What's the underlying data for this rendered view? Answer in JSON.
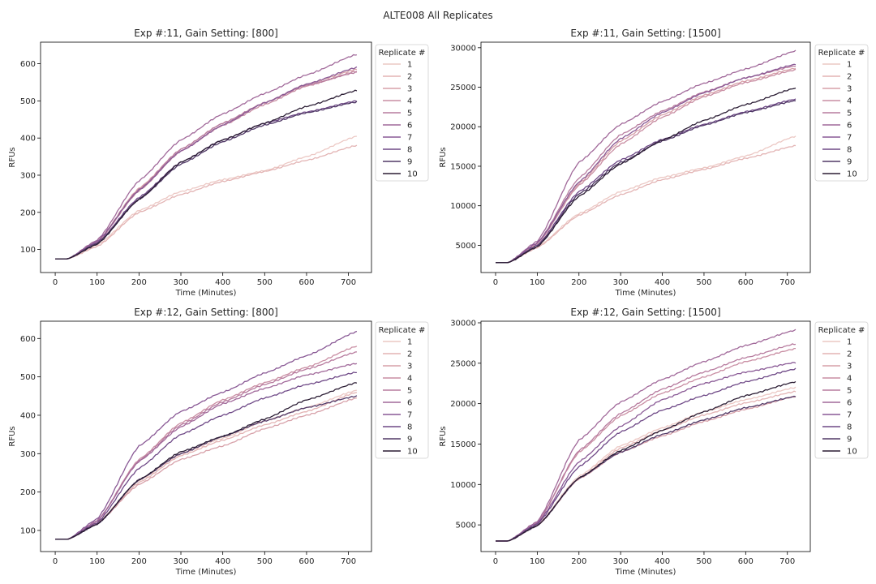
{
  "figure_title": "ALTE008 All Replicates",
  "legend_title": "Replicate #",
  "palette": [
    "#ecc8c4",
    "#e3b4b4",
    "#d7a1a9",
    "#c98ea3",
    "#b77b9e",
    "#a1699a",
    "#895995",
    "#6e4886",
    "#503866",
    "#2b1d34"
  ],
  "chart_data": [
    {
      "type": "line",
      "title": "Exp #:11, Gain Setting: [800]",
      "xlabel": "Time (Minutes)",
      "ylabel": "RFUs",
      "xlim": [
        -35,
        755
      ],
      "ylim": [
        38,
        658
      ],
      "xticks": [
        0,
        100,
        200,
        300,
        400,
        500,
        600,
        700
      ],
      "yticks": [
        100,
        200,
        300,
        400,
        500,
        600
      ],
      "grid": false,
      "legend_position": "outside-right",
      "x": [
        0,
        30,
        100,
        200,
        300,
        400,
        500,
        600,
        720
      ],
      "series": [
        {
          "name": "1",
          "values": [
            75,
            75,
            112,
            205,
            256,
            288,
            312,
            350,
            405
          ]
        },
        {
          "name": "2",
          "values": [
            75,
            75,
            108,
            200,
            248,
            283,
            310,
            340,
            380
          ]
        },
        {
          "name": "3",
          "values": [
            75,
            75,
            122,
            265,
            370,
            440,
            495,
            545,
            585
          ]
        },
        {
          "name": "4",
          "values": [
            75,
            75,
            120,
            258,
            365,
            434,
            490,
            540,
            580
          ]
        },
        {
          "name": "5",
          "values": [
            75,
            75,
            120,
            262,
            370,
            440,
            495,
            542,
            577
          ]
        },
        {
          "name": "6",
          "values": [
            75,
            75,
            125,
            285,
            395,
            465,
            520,
            570,
            625
          ]
        },
        {
          "name": "7",
          "values": [
            75,
            75,
            122,
            260,
            365,
            435,
            495,
            545,
            590
          ]
        },
        {
          "name": "8",
          "values": [
            75,
            75,
            118,
            240,
            335,
            395,
            440,
            470,
            500
          ]
        },
        {
          "name": "9",
          "values": [
            75,
            75,
            116,
            235,
            330,
            390,
            435,
            468,
            497
          ]
        },
        {
          "name": "10",
          "values": [
            75,
            75,
            114,
            235,
            335,
            395,
            440,
            485,
            528
          ]
        }
      ]
    },
    {
      "type": "line",
      "title": "Exp #:11, Gain Setting: [1500]",
      "xlabel": "Time (Minutes)",
      "ylabel": "RFUs",
      "xlim": [
        -35,
        755
      ],
      "ylim": [
        1550,
        30700
      ],
      "xticks": [
        0,
        100,
        200,
        300,
        400,
        500,
        600,
        700
      ],
      "yticks": [
        5000,
        10000,
        15000,
        20000,
        25000,
        30000
      ],
      "grid": false,
      "legend_position": "outside-right",
      "x": [
        0,
        30,
        100,
        200,
        300,
        400,
        500,
        600,
        720
      ],
      "series": [
        {
          "name": "1",
          "values": [
            2800,
            2800,
            4800,
            9000,
            11800,
            13600,
            14800,
            16300,
            18800
          ]
        },
        {
          "name": "2",
          "values": [
            2800,
            2800,
            4700,
            8800,
            11400,
            13300,
            14600,
            16000,
            17600
          ]
        },
        {
          "name": "3",
          "values": [
            2800,
            2800,
            5200,
            12800,
            18200,
            21500,
            24000,
            25800,
            27400
          ]
        },
        {
          "name": "4",
          "values": [
            2800,
            2800,
            5200,
            12600,
            17800,
            21200,
            23800,
            25600,
            27200
          ]
        },
        {
          "name": "5",
          "values": [
            2800,
            2800,
            5300,
            13500,
            19000,
            22000,
            24400,
            26200,
            27700
          ]
        },
        {
          "name": "6",
          "values": [
            2800,
            2800,
            5500,
            15500,
            20300,
            23200,
            25500,
            27300,
            29600
          ]
        },
        {
          "name": "7",
          "values": [
            2800,
            2800,
            5300,
            13000,
            18500,
            21800,
            24300,
            26200,
            27900
          ]
        },
        {
          "name": "8",
          "values": [
            2800,
            2800,
            5000,
            11800,
            15800,
            18400,
            20300,
            21900,
            23500
          ]
        },
        {
          "name": "9",
          "values": [
            2800,
            2800,
            4900,
            11500,
            15500,
            18200,
            20200,
            21800,
            23300
          ]
        },
        {
          "name": "10",
          "values": [
            2800,
            2800,
            4800,
            11200,
            15300,
            18300,
            20800,
            22800,
            24900
          ]
        }
      ]
    },
    {
      "type": "line",
      "title": "Exp #:12, Gain Setting: [800]",
      "xlabel": "Time (Minutes)",
      "ylabel": "RFUs",
      "xlim": [
        -35,
        755
      ],
      "ylim": [
        45,
        645
      ],
      "xticks": [
        0,
        100,
        200,
        300,
        400,
        500,
        600,
        700
      ],
      "yticks": [
        100,
        200,
        300,
        400,
        500,
        600
      ],
      "grid": false,
      "legend_position": "outside-right",
      "x": [
        0,
        30,
        100,
        200,
        300,
        400,
        500,
        600,
        720
      ],
      "series": [
        {
          "name": "1",
          "values": [
            77,
            77,
            120,
            230,
            300,
            340,
            385,
            420,
            465
          ]
        },
        {
          "name": "2",
          "values": [
            77,
            77,
            118,
            225,
            295,
            335,
            375,
            410,
            460
          ]
        },
        {
          "name": "3",
          "values": [
            77,
            77,
            118,
            220,
            285,
            320,
            365,
            400,
            445
          ]
        },
        {
          "name": "4",
          "values": [
            77,
            77,
            125,
            285,
            380,
            440,
            485,
            525,
            580
          ]
        },
        {
          "name": "5",
          "values": [
            77,
            77,
            124,
            282,
            375,
            435,
            480,
            520,
            565
          ]
        },
        {
          "name": "6",
          "values": [
            77,
            77,
            125,
            280,
            370,
            430,
            470,
            505,
            535
          ]
        },
        {
          "name": "7",
          "values": [
            77,
            77,
            130,
            320,
            410,
            460,
            510,
            555,
            618
          ]
        },
        {
          "name": "8",
          "values": [
            77,
            77,
            120,
            262,
            350,
            400,
            445,
            480,
            512
          ]
        },
        {
          "name": "9",
          "values": [
            77,
            77,
            116,
            232,
            300,
            345,
            385,
            420,
            450
          ]
        },
        {
          "name": "10",
          "values": [
            77,
            77,
            116,
            232,
            305,
            345,
            390,
            440,
            485
          ]
        }
      ]
    },
    {
      "type": "line",
      "title": "Exp #:12, Gain Setting: [1500]",
      "xlabel": "Time (Minutes)",
      "ylabel": "RFUs",
      "xlim": [
        -35,
        755
      ],
      "ylim": [
        1700,
        30200
      ],
      "xticks": [
        0,
        100,
        200,
        300,
        400,
        500,
        600,
        700
      ],
      "yticks": [
        5000,
        10000,
        15000,
        20000,
        25000,
        30000
      ],
      "grid": false,
      "legend_position": "outside-right",
      "x": [
        0,
        30,
        100,
        200,
        300,
        400,
        500,
        600,
        720
      ],
      "series": [
        {
          "name": "1",
          "values": [
            3000,
            3000,
            5000,
            11000,
            14800,
            17000,
            19000,
            20500,
            22000
          ]
        },
        {
          "name": "2",
          "values": [
            3000,
            3000,
            4900,
            10800,
            14500,
            16700,
            18600,
            20100,
            21500
          ]
        },
        {
          "name": "3",
          "values": [
            3000,
            3000,
            4900,
            10700,
            14000,
            16000,
            17800,
            19300,
            20900
          ]
        },
        {
          "name": "4",
          "values": [
            3000,
            3000,
            5300,
            14000,
            18500,
            21300,
            23300,
            25200,
            26800
          ]
        },
        {
          "name": "5",
          "values": [
            3000,
            3000,
            5300,
            14200,
            18800,
            21800,
            23900,
            25700,
            27400
          ]
        },
        {
          "name": "6",
          "values": [
            3000,
            3000,
            5400,
            15500,
            20200,
            23000,
            25200,
            27200,
            29100
          ]
        },
        {
          "name": "7",
          "values": [
            3000,
            3000,
            5200,
            12800,
            17200,
            20500,
            22500,
            23900,
            25100
          ]
        },
        {
          "name": "8",
          "values": [
            3000,
            3000,
            5100,
            12200,
            16500,
            19200,
            21000,
            22700,
            24300
          ]
        },
        {
          "name": "9",
          "values": [
            3000,
            3000,
            4900,
            10800,
            14000,
            16200,
            18000,
            19500,
            20900
          ]
        },
        {
          "name": "10",
          "values": [
            3000,
            3000,
            4900,
            10800,
            14200,
            16700,
            19000,
            21000,
            22700
          ]
        }
      ]
    }
  ]
}
